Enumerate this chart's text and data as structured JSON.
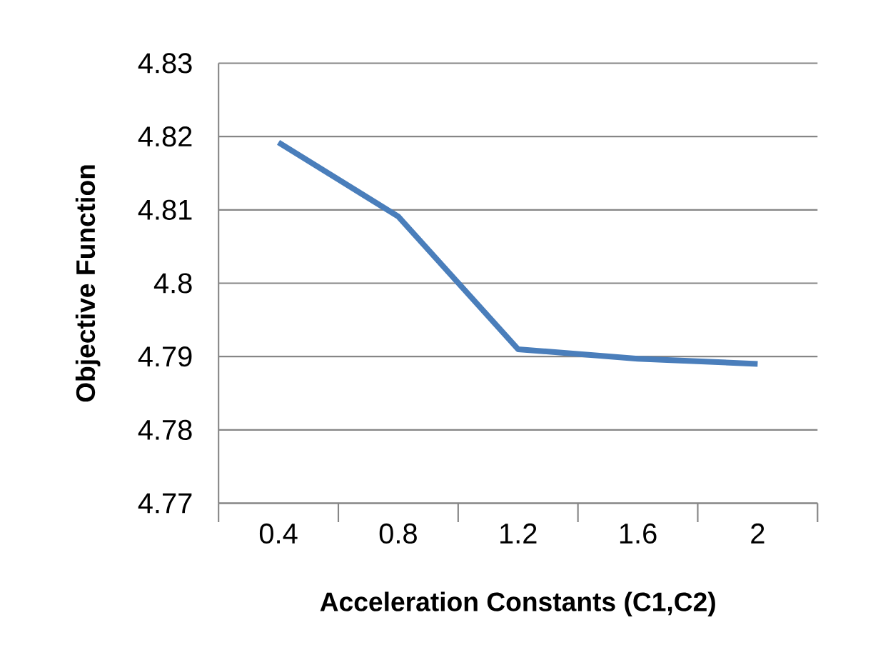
{
  "chart_data": {
    "type": "line",
    "xlabel": "Acceleration Constants (C1,C2)",
    "ylabel": "Objective Function",
    "categories": [
      "0.4",
      "0.8",
      "1.2",
      "1.6",
      "2"
    ],
    "series": [
      {
        "color": "#4a7ebb",
        "values": [
          4.8192,
          4.8091,
          4.791,
          4.7897,
          4.789
        ]
      }
    ],
    "ylim": [
      4.77,
      4.83
    ],
    "yticks": [
      4.77,
      4.78,
      4.79,
      4.8,
      4.81,
      4.82,
      4.83
    ],
    "grid": "y",
    "marker": "none",
    "line_style": "solid"
  }
}
